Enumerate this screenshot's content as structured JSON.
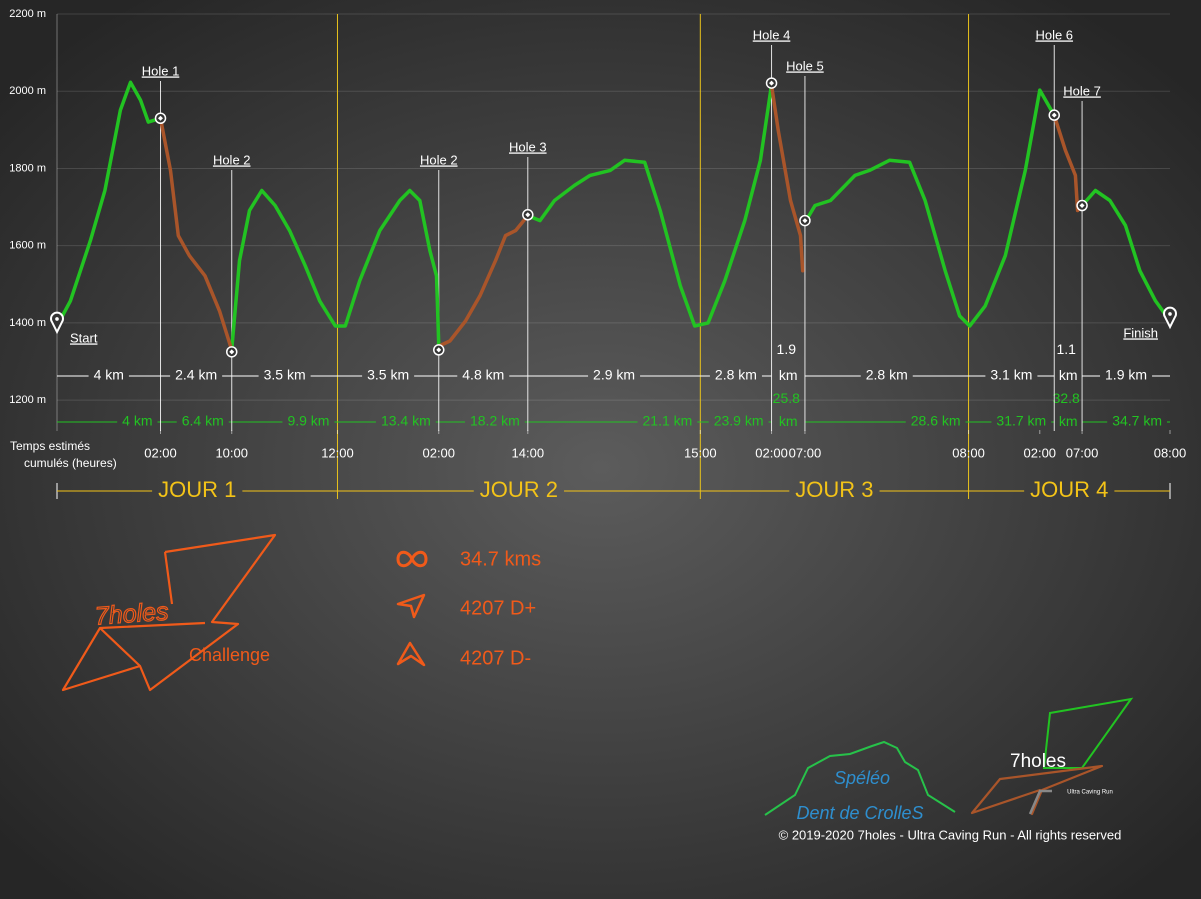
{
  "chart_data": {
    "type": "line",
    "x": [
      0.0,
      1.2,
      3.0,
      4.3,
      5.7,
      6.6,
      7.5,
      8.2,
      9.3,
      10.2,
      10.9,
      11.9,
      13.3,
      14.6,
      15.7,
      16.4,
      17.3,
      18.4,
      19.6,
      20.9,
      22.3,
      23.6,
      25.0,
      25.9,
      27.2,
      29.0,
      30.8,
      31.7,
      32.6,
      33.5,
      34.1,
      34.3,
      35.3,
      36.7,
      38.0,
      39.4,
      40.3,
      41.2,
      42.3,
      43.4,
      44.7,
      46.5,
      47.9,
      49.7,
      51.0,
      52.8,
      54.2,
      56.0,
      57.3,
      58.5,
      60.0,
      61.8,
      63.2,
      64.2,
      64.8,
      65.9,
      66.8,
      67.0,
      67.2,
      68.1,
      69.5,
      71.7,
      73.0,
      74.8,
      76.6,
      78.0,
      79.8,
      81.1,
      82.0,
      83.4,
      85.2,
      87.0,
      88.3,
      89.6,
      90.6,
      91.5,
      91.7,
      92.1,
      93.3,
      94.6,
      96.0,
      97.3,
      98.7,
      100.0
    ],
    "series": [
      {
        "color": "#22c322",
        "values": [
          1392,
          1457,
          1613,
          1743,
          1951,
          2023,
          1977,
          1920,
          1930,
          null,
          null,
          null,
          null,
          null,
          1330,
          1561,
          1691,
          1743,
          1704,
          1639,
          1548,
          1457,
          1392,
          1392,
          1509,
          1639,
          1717,
          1743,
          1717,
          1587,
          1522,
          1340,
          null,
          null,
          null,
          null,
          null,
          null,
          1678,
          1665,
          1717,
          1756,
          1782,
          1795,
          1821,
          1816,
          1691,
          1496,
          1392,
          1400,
          1509,
          1665,
          1821,
          2016,
          null,
          null,
          null,
          null,
          1660,
          1704,
          1717,
          1782,
          1795,
          1821,
          1816,
          1717,
          1535,
          1418,
          1392,
          1444,
          1574,
          1795,
          2003,
          1938,
          null,
          null,
          null,
          1704,
          1743,
          1717,
          1652,
          1535,
          1457,
          1405
        ]
      },
      {
        "color": "#a9552a",
        "values": [
          null,
          null,
          null,
          null,
          null,
          null,
          null,
          null,
          1930,
          1795,
          1626,
          1574,
          1522,
          1431,
          1330,
          null,
          null,
          null,
          null,
          null,
          null,
          null,
          null,
          null,
          null,
          null,
          null,
          null,
          null,
          null,
          null,
          1340,
          1353,
          1405,
          1470,
          1561,
          1626,
          1639,
          1678,
          null,
          null,
          null,
          null,
          null,
          null,
          null,
          null,
          null,
          null,
          null,
          null,
          null,
          null,
          2016,
          1899,
          1717,
          1626,
          1535,
          null,
          null,
          null,
          null,
          null,
          null,
          null,
          null,
          null,
          null,
          null,
          null,
          null,
          null,
          null,
          1938,
          1847,
          1782,
          1691,
          null,
          null,
          null,
          null,
          null,
          null,
          null
        ]
      }
    ],
    "xlim": [
      0,
      100
    ],
    "ylim": [
      1120,
      2200
    ],
    "yticks": [
      {
        "value": 1200,
        "label": "1200 m"
      },
      {
        "value": 1400,
        "label": "1400 m"
      },
      {
        "value": 1600,
        "label": "1600 m"
      },
      {
        "value": 1800,
        "label": "1800 m"
      },
      {
        "value": 2000,
        "label": "2000 m"
      },
      {
        "value": 2200,
        "label": "2200 m"
      }
    ],
    "xticks": [
      {
        "value": 9.3,
        "label": "02:00"
      },
      {
        "value": 15.7,
        "label": "10:00"
      },
      {
        "value": 25.2,
        "label": "12:00"
      },
      {
        "value": 34.3,
        "label": "02:00"
      },
      {
        "value": 42.3,
        "label": "14:00"
      },
      {
        "value": 57.8,
        "label": "15:00"
      },
      {
        "value": 64.2,
        "label": "02:00"
      },
      {
        "value": 67.2,
        "label": "07:00"
      },
      {
        "value": 81.9,
        "label": "08:00"
      },
      {
        "value": 88.3,
        "label": "02:00"
      },
      {
        "value": 92.1,
        "label": "07:00"
      },
      {
        "value": 100,
        "label": "08:00"
      }
    ],
    "x_label": [
      "Temps estimés",
      "cumulés (heures)"
    ],
    "grid": true,
    "start": {
      "label": "Start",
      "x": 0,
      "y": 1392
    },
    "finish": {
      "label": "Finish",
      "x": 100,
      "y": 1405
    },
    "markers": [
      {
        "label": "Hole 1",
        "x": 9.3,
        "y": 1930
      },
      {
        "label": "Hole 2",
        "x": 15.7,
        "y": 1325
      },
      {
        "label": "Hole 2",
        "x": 34.3,
        "y": 1330
      },
      {
        "label": "Hole 3",
        "x": 42.3,
        "y": 1680
      },
      {
        "label": "Hole 4",
        "x": 64.2,
        "y": 2021
      },
      {
        "label": "Hole 5",
        "x": 67.2,
        "y": 1665
      },
      {
        "label": "Hole 6",
        "x": 89.6,
        "y": 1938
      },
      {
        "label": "Hole 7",
        "x": 92.1,
        "y": 1704
      }
    ],
    "segments": [
      {
        "from": 0,
        "to": 9.3,
        "label": "4 km",
        "cumulative": "4 km"
      },
      {
        "from": 9.3,
        "to": 15.7,
        "label": "2.4 km",
        "cumulative": "6.4 km"
      },
      {
        "from": 15.7,
        "to": 25.2,
        "label": "3.5 km",
        "cumulative": "9.9 km"
      },
      {
        "from": 25.2,
        "to": 34.3,
        "label": "3.5 km",
        "cumulative": "13.4 km"
      },
      {
        "from": 34.3,
        "to": 42.3,
        "label": "4.8 km",
        "cumulative": "18.2 km"
      },
      {
        "from": 42.3,
        "to": 57.8,
        "label": "2.9 km",
        "cumulative": "21.1 km"
      },
      {
        "from": 57.8,
        "to": 64.2,
        "label": "2.8 km",
        "cumulative": "23.9 km"
      },
      {
        "from": 64.2,
        "to": 67.2,
        "label": "1.9 km",
        "cumulative": "25.8 km"
      },
      {
        "from": 67.2,
        "to": 81.9,
        "label": "2.8 km",
        "cumulative": "28.6 km"
      },
      {
        "from": 81.9,
        "to": 89.6,
        "label": "3.1 km",
        "cumulative": "31.7 km"
      },
      {
        "from": 89.6,
        "to": 92.1,
        "label": "1.1 km",
        "cumulative": "32.8 km"
      },
      {
        "from": 92.1,
        "to": 100,
        "label": "1.9 km",
        "cumulative": "34.7 km"
      }
    ],
    "days": [
      {
        "label": "JOUR 1",
        "from": 0,
        "to": 25.2
      },
      {
        "label": "JOUR 2",
        "from": 25.2,
        "to": 57.8
      },
      {
        "label": "JOUR 3",
        "from": 57.8,
        "to": 81.9
      },
      {
        "label": "JOUR 4",
        "from": 81.9,
        "to": 100
      }
    ]
  },
  "stats": [
    "34.7 kms",
    "4207 D+",
    "4207 D-"
  ],
  "logos": {
    "challenge": [
      "7holes",
      "Challenge"
    ],
    "speleo": [
      "Spéléo",
      "Dent de CrolleS"
    ],
    "ultra": [
      "7holes",
      "Ultra Caving Run"
    ]
  },
  "copyright": "© 2019-2020 7holes - Ultra Caving Run - All rights reserved"
}
